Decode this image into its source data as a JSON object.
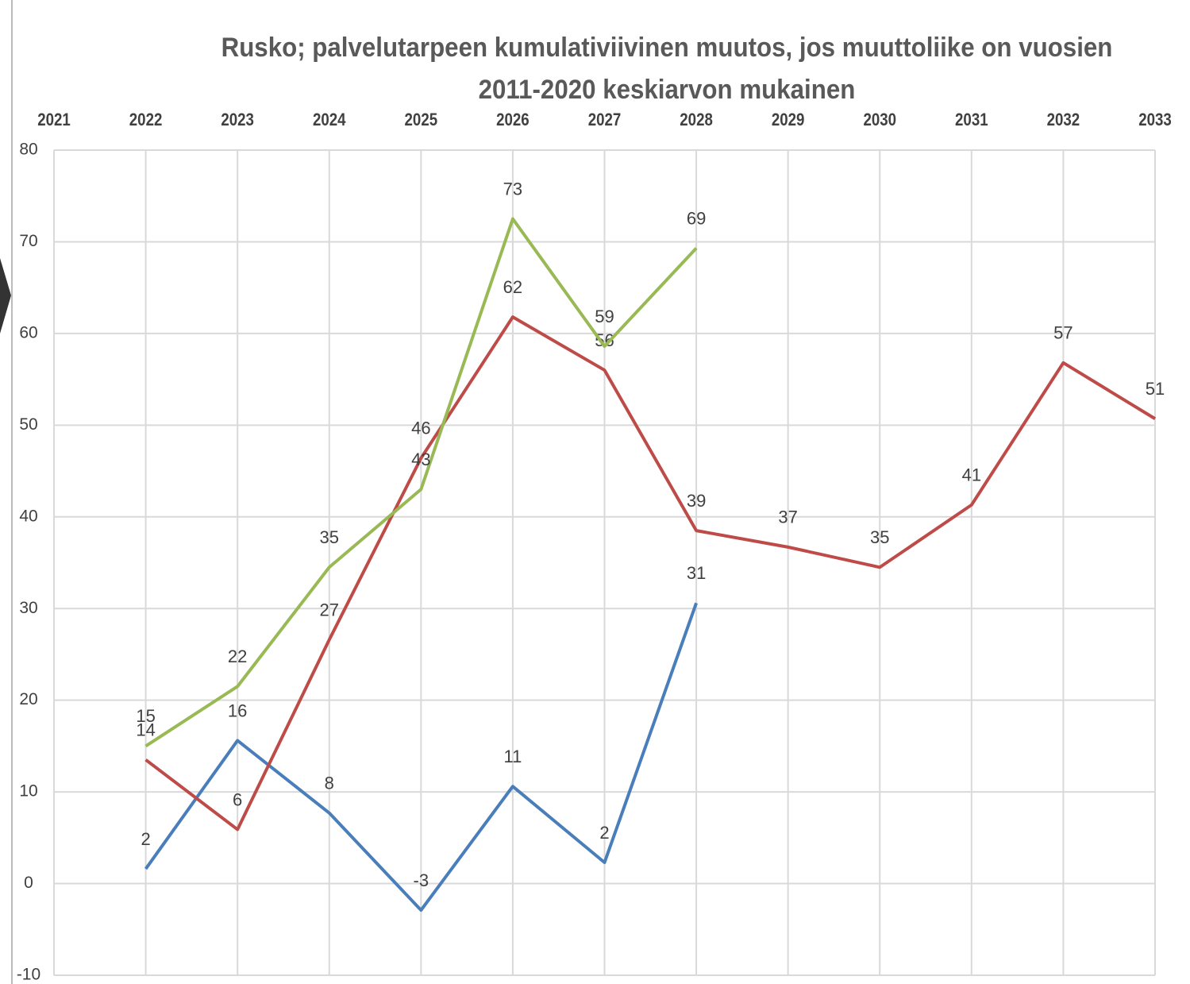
{
  "chart_data": {
    "type": "line",
    "title": "Rusko; palvelutarpeen kumulativiivinen muutos, jos muuttoliike on vuosien 2011-2020 keskiarvon mukainen",
    "categories": [
      "2021",
      "2022",
      "2023",
      "2024",
      "2025",
      "2026",
      "2027",
      "2028",
      "2029",
      "2030",
      "2031",
      "2032",
      "2033"
    ],
    "series": [
      {
        "color": "#4a7ebb",
        "values": [
          null,
          1.6,
          15.6,
          7.7,
          -2.9,
          10.6,
          2.3,
          30.6,
          null,
          null,
          null,
          null,
          null
        ],
        "value_labels": [
          null,
          "2",
          "16",
          "8",
          "-3",
          "11",
          "2",
          "31",
          null,
          null,
          null,
          null,
          null
        ]
      },
      {
        "color": "#be4b48",
        "values": [
          null,
          13.5,
          5.9,
          26.6,
          46.4,
          61.8,
          56.0,
          38.5,
          36.7,
          34.5,
          41.3,
          56.8,
          50.7
        ],
        "value_labels": [
          null,
          "14",
          "6",
          "27",
          "46",
          "62",
          "56",
          "39",
          "37",
          "35",
          "41",
          "57",
          "51"
        ]
      },
      {
        "color": "#98b954",
        "values": [
          null,
          15.0,
          21.5,
          34.5,
          43.0,
          72.5,
          58.6,
          69.3,
          null,
          null,
          null,
          null,
          null
        ],
        "value_labels": [
          null,
          "15",
          "22",
          "35",
          "43",
          "73",
          "59",
          "69",
          null,
          null,
          null,
          null,
          null
        ]
      }
    ],
    "ylim": [
      -10,
      80
    ],
    "yticks": [
      -10,
      0,
      10,
      20,
      30,
      40,
      50,
      60,
      70,
      80
    ],
    "grid": true
  }
}
